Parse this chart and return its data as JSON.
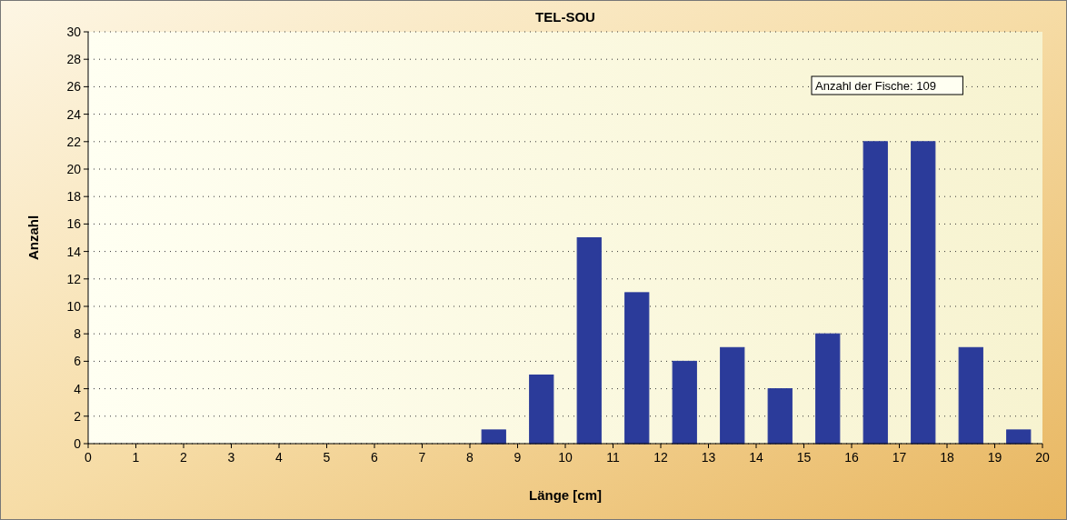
{
  "chart_data": {
    "type": "bar",
    "title": "TEL-SOU",
    "xlabel": "Länge [cm]",
    "ylabel": "Anzahl",
    "x": [
      8.5,
      9.5,
      10.5,
      11.5,
      12.5,
      13.5,
      14.5,
      15.5,
      16.5,
      17.5,
      18.5,
      19.5
    ],
    "values": [
      1,
      5,
      15,
      11,
      6,
      7,
      4,
      8,
      22,
      22,
      7,
      1
    ],
    "color": "#2b3b9a",
    "xlim": [
      0,
      20
    ],
    "xticks": [
      0,
      1,
      2,
      3,
      4,
      5,
      6,
      7,
      8,
      9,
      10,
      11,
      12,
      13,
      14,
      15,
      16,
      17,
      18,
      19,
      20
    ],
    "ylim": [
      0,
      30
    ],
    "yticks": [
      0,
      2,
      4,
      6,
      8,
      10,
      12,
      14,
      16,
      18,
      20,
      22,
      24,
      26,
      28,
      30
    ],
    "grid": "y",
    "annotations": [
      "Anzahl der Fische: 109"
    ]
  }
}
